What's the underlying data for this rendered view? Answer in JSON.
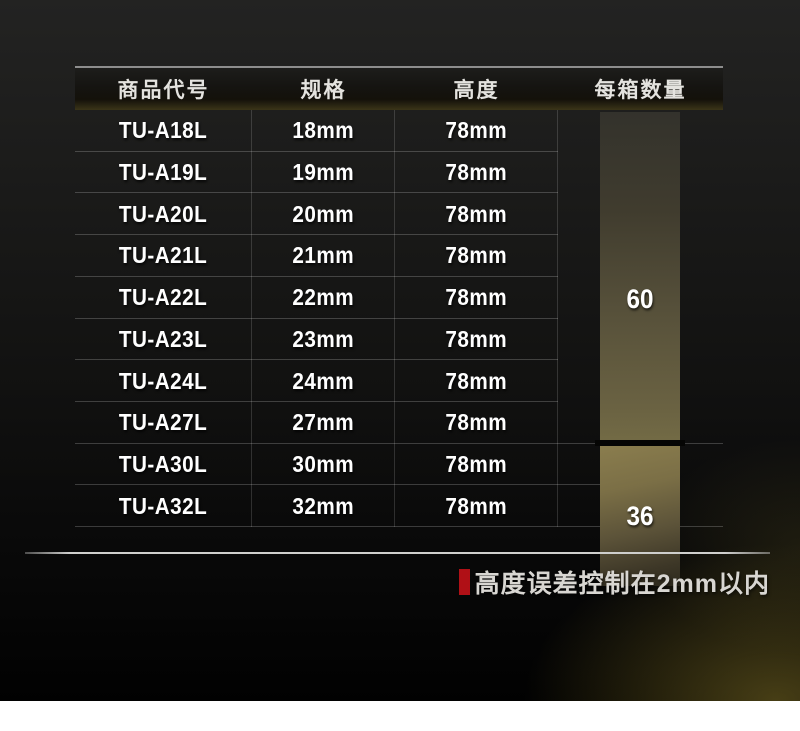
{
  "table": {
    "headers": [
      "商品代号",
      "规格",
      "高度",
      "每箱数量"
    ],
    "rows": [
      {
        "code": "TU-A18L",
        "spec": "18mm",
        "height": "78mm"
      },
      {
        "code": "TU-A19L",
        "spec": "19mm",
        "height": "78mm"
      },
      {
        "code": "TU-A20L",
        "spec": "20mm",
        "height": "78mm"
      },
      {
        "code": "TU-A21L",
        "spec": "21mm",
        "height": "78mm"
      },
      {
        "code": "TU-A22L",
        "spec": "22mm",
        "height": "78mm"
      },
      {
        "code": "TU-A23L",
        "spec": "23mm",
        "height": "78mm"
      },
      {
        "code": "TU-A24L",
        "spec": "24mm",
        "height": "78mm"
      },
      {
        "code": "TU-A27L",
        "spec": "27mm",
        "height": "78mm"
      },
      {
        "code": "TU-A30L",
        "spec": "30mm",
        "height": "78mm"
      },
      {
        "code": "TU-A32L",
        "spec": "32mm",
        "height": "78mm"
      }
    ],
    "qty_groups": [
      {
        "qty": "60",
        "row_span": 8
      },
      {
        "qty": "36",
        "row_span": 2
      }
    ]
  },
  "footnote": {
    "text": "高度误差控制在2mm以内"
  },
  "colors": {
    "accent_red": "#b01016",
    "bar_gold": "#7f7649",
    "header_highlight": "#8d8d8d",
    "text_white": "#ffffff"
  }
}
